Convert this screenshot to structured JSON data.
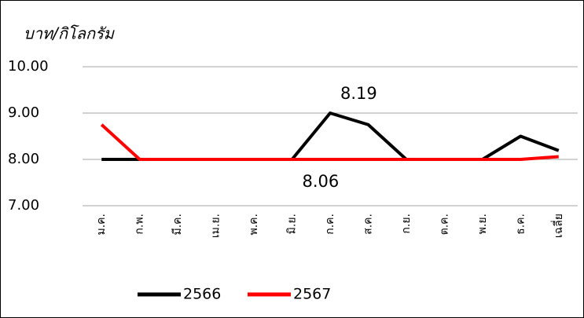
{
  "chart_data": {
    "type": "line",
    "y_axis_label": "บาท/กิโลกรัม",
    "categories": [
      "ม.ค.",
      "ก.พ.",
      "มี.ค.",
      "เม.ย.",
      "พ.ค.",
      "มิ.ย.",
      "ก.ค.",
      "ส.ค.",
      "ก.ย.",
      "ต.ค.",
      "พ.ย.",
      "ธ.ค.",
      "เฉลี่ย"
    ],
    "series": [
      {
        "name": "2566",
        "color": "#000000",
        "values": [
          8.0,
          8.0,
          8.0,
          8.0,
          8.0,
          8.0,
          9.0,
          8.75,
          8.0,
          8.0,
          8.0,
          8.5,
          8.19
        ]
      },
      {
        "name": "2567",
        "color": "#ff0000",
        "values": [
          8.75,
          8.0,
          8.0,
          8.0,
          8.0,
          8.0,
          8.0,
          8.0,
          8.0,
          8.0,
          8.0,
          8.0,
          8.06
        ]
      }
    ],
    "ylim": [
      7,
      10
    ],
    "yticks": [
      {
        "value": 7,
        "label": "7.00"
      },
      {
        "value": 8,
        "label": "8.00"
      },
      {
        "value": 9,
        "label": "9.00"
      },
      {
        "value": 10,
        "label": "10.00"
      }
    ],
    "grid": true,
    "legend": "bottom"
  }
}
